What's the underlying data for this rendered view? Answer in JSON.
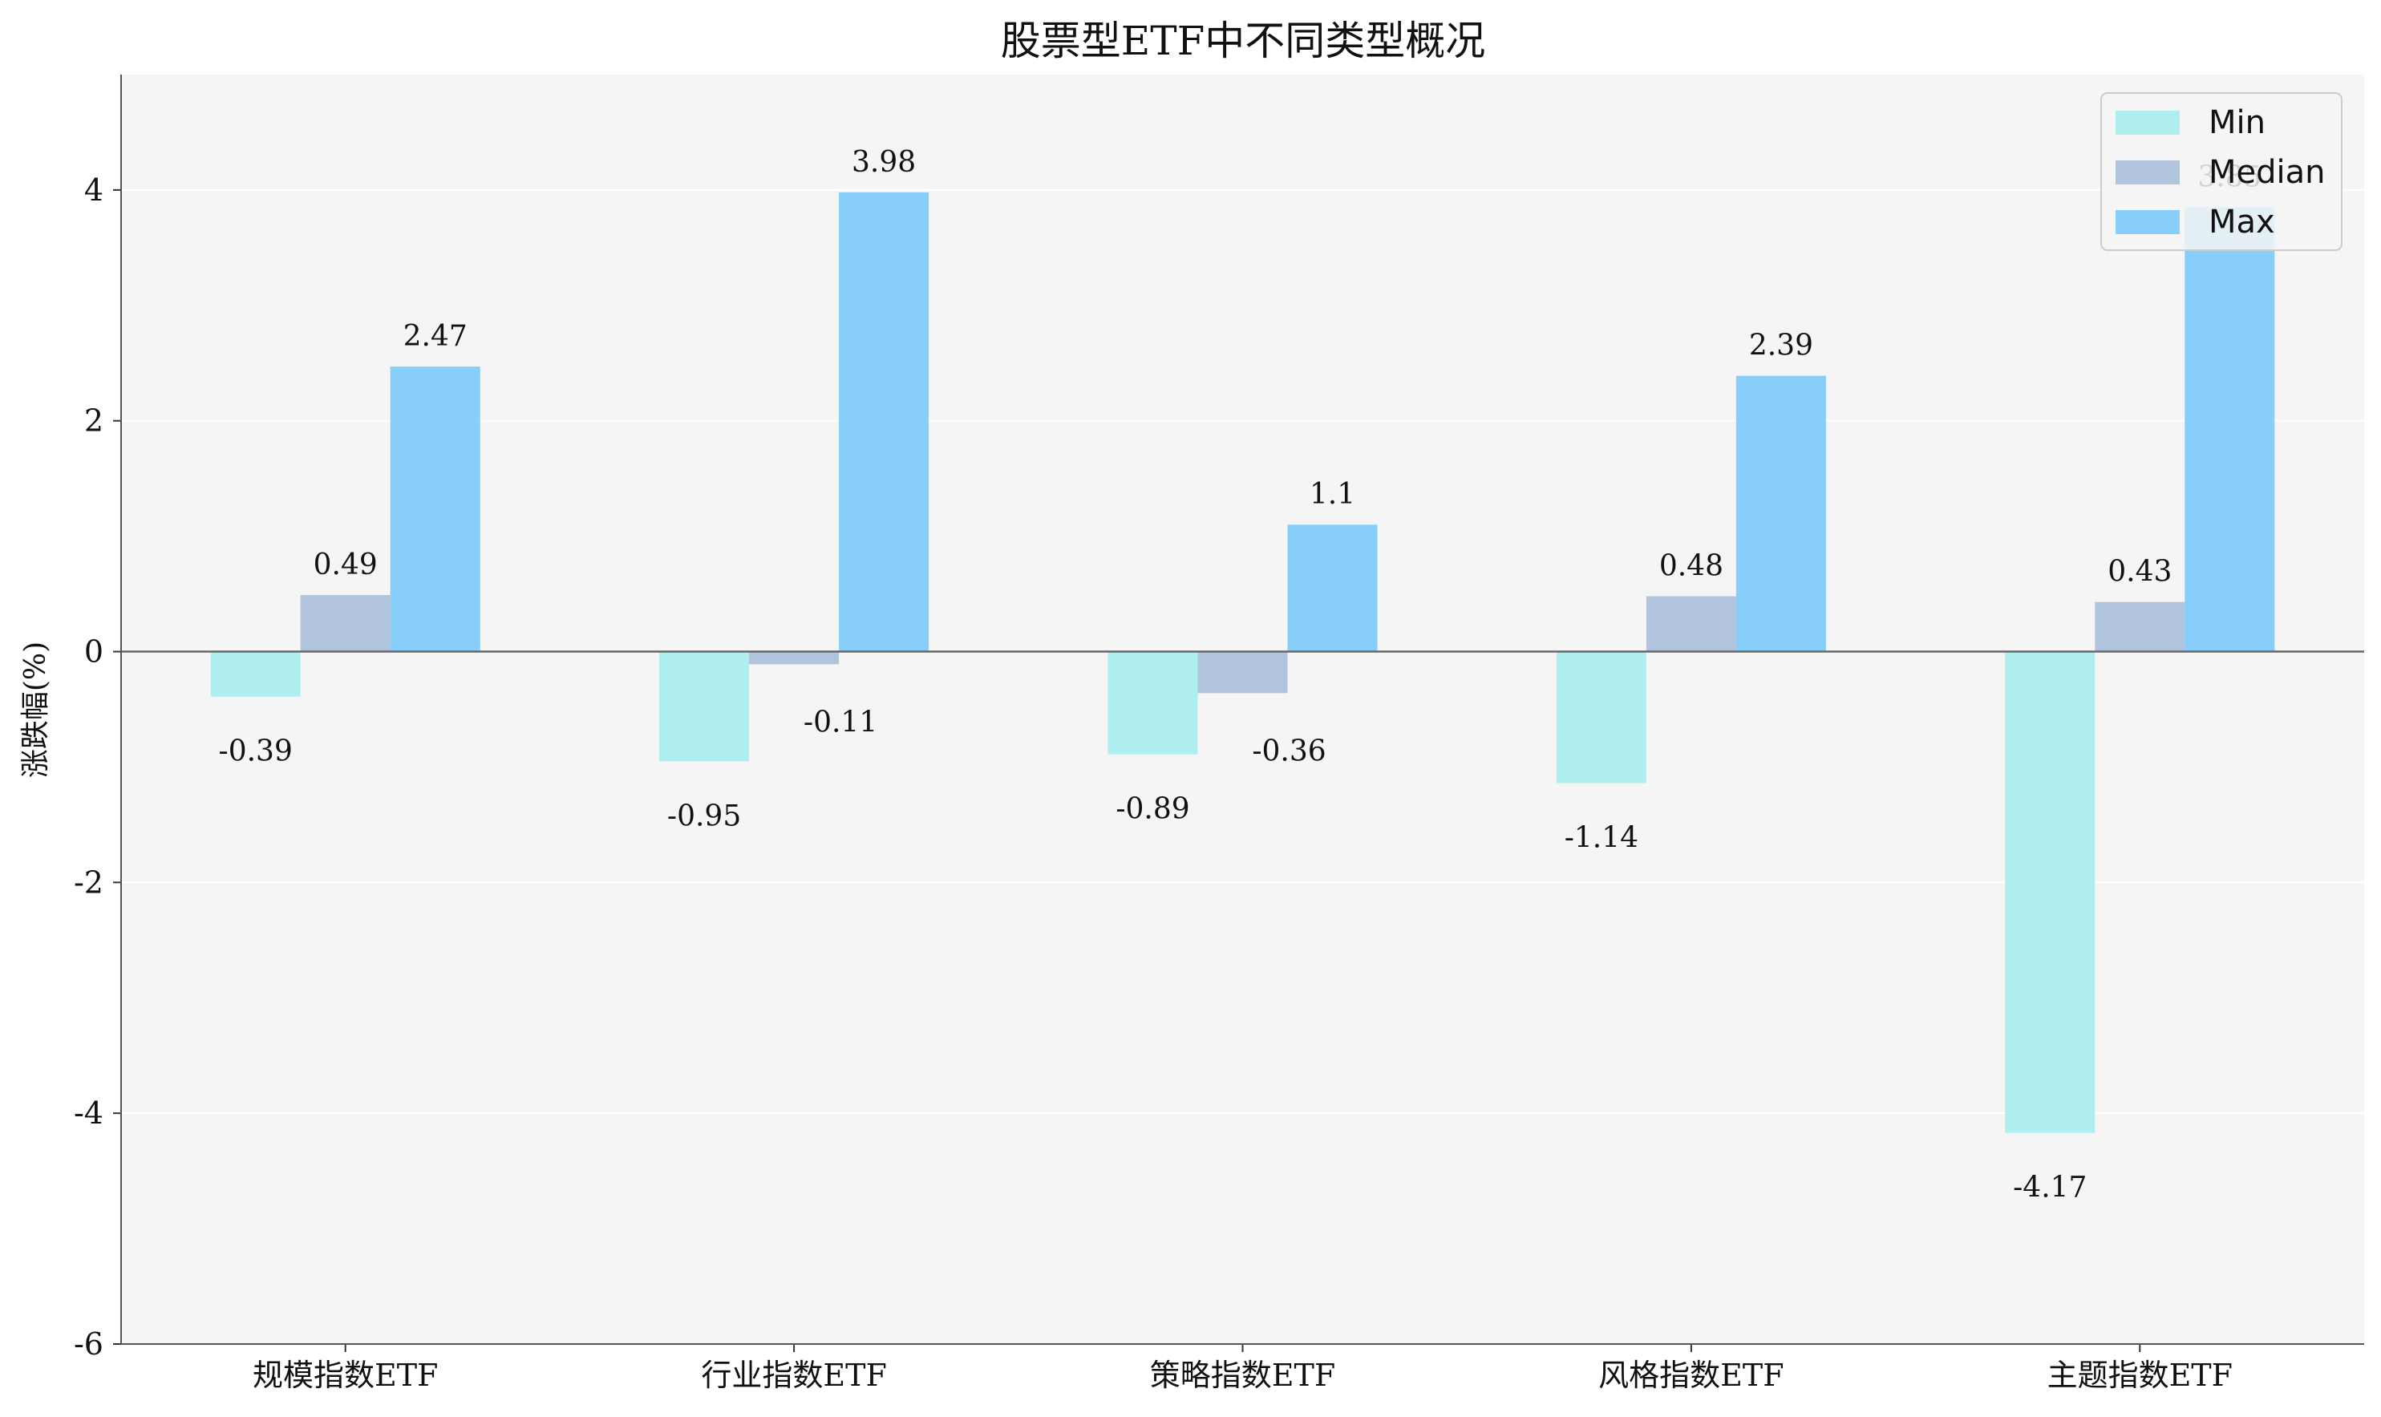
{
  "chart_data": {
    "type": "bar",
    "title": "股票型ETF中不同类型概况",
    "ylabel": "涨跌幅(%)",
    "xlabel": "",
    "categories": [
      "规模指数ETF",
      "行业指数ETF",
      "策略指数ETF",
      "风格指数ETF",
      "主题指数ETF"
    ],
    "series": [
      {
        "name": "Min",
        "color": "#afeeee",
        "values": [
          -0.39,
          -0.95,
          -0.89,
          -1.14,
          -4.17
        ],
        "labels": [
          "-0.39",
          "-0.95",
          "-0.89",
          "-1.14",
          "-4.17"
        ]
      },
      {
        "name": "Median",
        "color": "#b0c4de",
        "values": [
          0.49,
          -0.11,
          -0.36,
          0.48,
          0.43
        ],
        "labels": [
          "0.49",
          "-0.11",
          "-0.36",
          "0.48",
          "0.43"
        ]
      },
      {
        "name": "Max",
        "color": "#87cefa",
        "values": [
          2.47,
          3.98,
          1.1,
          2.39,
          3.85
        ],
        "labels": [
          "2.47",
          "3.98",
          "1.1",
          "2.39",
          "3.85"
        ]
      }
    ],
    "ylim": [
      -6,
      5
    ],
    "yticks": [
      -6,
      -4,
      -2,
      0,
      2,
      4
    ],
    "ytick_labels": [
      "-6",
      "-4",
      "-2",
      "0",
      "2",
      "4"
    ],
    "grid": true,
    "legend_position": "top-right",
    "background_color": "#f5f5f5"
  }
}
